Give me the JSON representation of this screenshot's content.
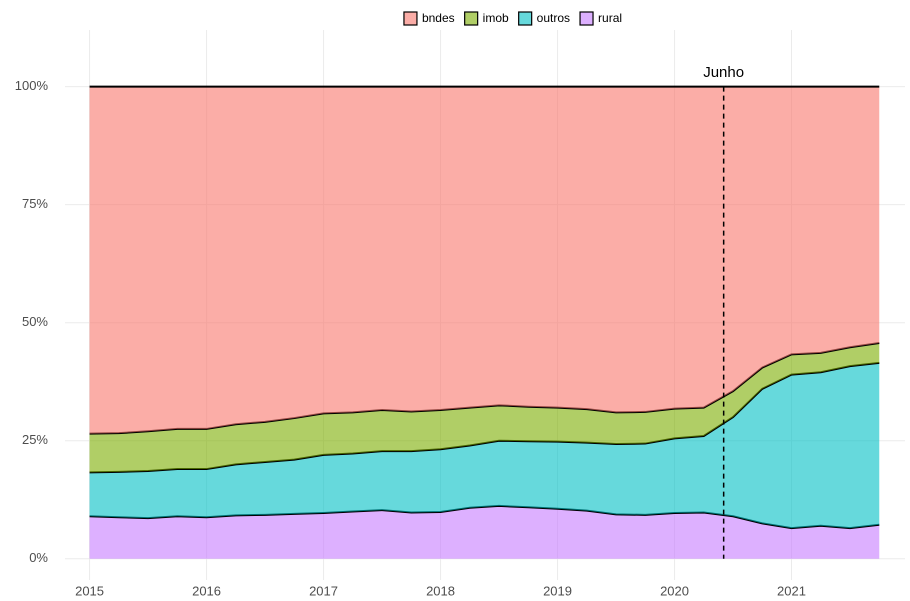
{
  "chart_data": {
    "type": "stacked_area",
    "x": [
      2015.0,
      2015.25,
      2015.5,
      2015.75,
      2016.0,
      2016.25,
      2016.5,
      2016.75,
      2017.0,
      2017.25,
      2017.5,
      2017.75,
      2018.0,
      2018.25,
      2018.5,
      2018.75,
      2019.0,
      2019.25,
      2019.5,
      2019.75,
      2020.0,
      2020.25,
      2020.5,
      2020.75,
      2021.0,
      2021.25,
      2021.5,
      2021.75
    ],
    "series": [
      {
        "name": "rural",
        "color": "#c77cff",
        "values": [
          9.0,
          8.8,
          8.6,
          9.0,
          8.8,
          9.2,
          9.3,
          9.5,
          9.7,
          10.0,
          10.3,
          9.8,
          9.9,
          10.8,
          11.2,
          10.9,
          10.6,
          10.2,
          9.4,
          9.3,
          9.7,
          9.8,
          9.0,
          7.5,
          6.5,
          7.0,
          6.5,
          7.2
        ]
      },
      {
        "name": "outros",
        "color": "#00bfc4",
        "values": [
          9.3,
          9.6,
          10.0,
          10.0,
          10.2,
          10.8,
          11.2,
          11.5,
          12.3,
          12.3,
          12.5,
          13.0,
          13.3,
          13.2,
          13.8,
          14.0,
          14.2,
          14.4,
          14.9,
          15.1,
          15.8,
          16.2,
          21.0,
          28.5,
          32.5,
          32.5,
          34.3,
          34.3
        ]
      },
      {
        "name": "imob",
        "color": "#7cae00",
        "values": [
          8.2,
          8.2,
          8.4,
          8.5,
          8.5,
          8.5,
          8.5,
          8.8,
          8.8,
          8.7,
          8.7,
          8.4,
          8.3,
          8.0,
          7.5,
          7.3,
          7.2,
          7.1,
          6.7,
          6.7,
          6.3,
          6.0,
          5.5,
          4.5,
          4.3,
          4.1,
          4.0,
          4.2
        ]
      },
      {
        "name": "bndes",
        "color": "#f8766d",
        "values": [
          73.5,
          73.4,
          73.0,
          72.5,
          72.5,
          71.5,
          71.0,
          70.2,
          69.2,
          69.0,
          68.5,
          68.8,
          68.5,
          68.0,
          67.5,
          67.8,
          68.0,
          68.3,
          69.0,
          68.9,
          68.2,
          68.0,
          64.5,
          59.5,
          56.7,
          56.4,
          55.2,
          54.3
        ]
      }
    ],
    "legend_order": [
      "bndes",
      "imob",
      "outros",
      "rural"
    ],
    "xlim": [
      2014.79,
      2021.97
    ],
    "xticks": [
      2015,
      2016,
      2017,
      2018,
      2019,
      2020,
      2021
    ],
    "ylim": [
      -4.5,
      112
    ],
    "yticks": [
      {
        "value": 0,
        "label": "0%"
      },
      {
        "value": 25,
        "label": "25%"
      },
      {
        "value": 50,
        "label": "50%"
      },
      {
        "value": 75,
        "label": "75%"
      },
      {
        "value": 100,
        "label": "100%"
      }
    ],
    "grid": true,
    "legend_position": "top",
    "annotations": [
      {
        "x": 2020.42,
        "label": "Junho"
      }
    ]
  }
}
